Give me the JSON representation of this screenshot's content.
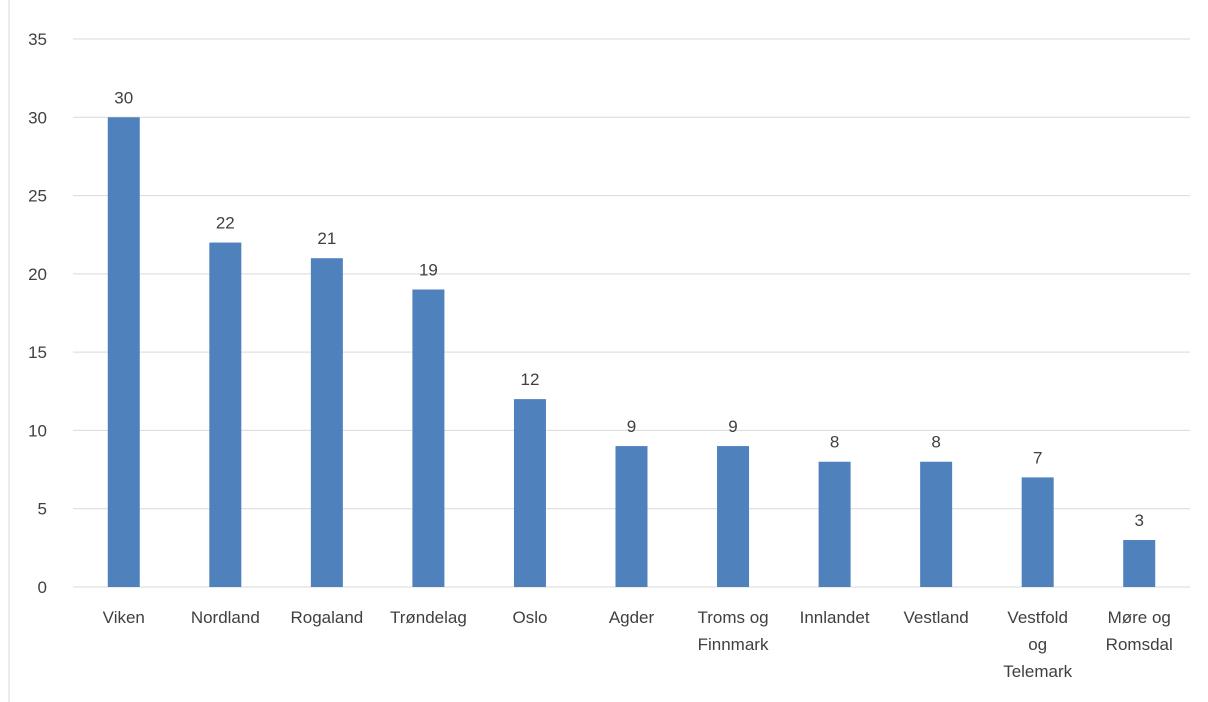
{
  "chart_data": {
    "type": "bar",
    "title": "",
    "xlabel": "",
    "ylabel": "",
    "ylim": [
      0,
      35
    ],
    "yticks": [
      0,
      5,
      10,
      15,
      20,
      25,
      30,
      35
    ],
    "grid": true,
    "legend": "none",
    "bar_color": "#4f81bd",
    "categories": [
      [
        "Viken"
      ],
      [
        "Nordland"
      ],
      [
        "Rogaland"
      ],
      [
        "Trøndelag"
      ],
      [
        "Oslo"
      ],
      [
        "Agder"
      ],
      [
        "Troms og",
        "Finnmark"
      ],
      [
        "Innlandet"
      ],
      [
        "Vestland"
      ],
      [
        "Vestfold",
        "og",
        "Telemark"
      ],
      [
        "Møre og",
        "Romsdal"
      ]
    ],
    "values": [
      30,
      22,
      21,
      19,
      12,
      9,
      9,
      8,
      8,
      7,
      3
    ],
    "data_labels": [
      "30",
      "22",
      "21",
      "19",
      "12",
      "9",
      "9",
      "8",
      "8",
      "7",
      "3"
    ]
  }
}
